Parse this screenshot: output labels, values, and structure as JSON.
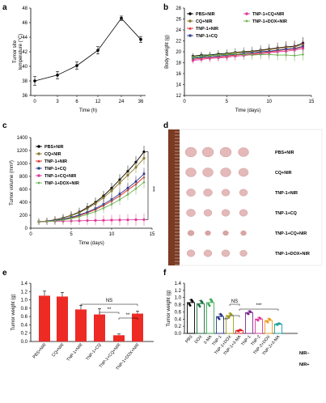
{
  "chart_data": [
    {
      "panel": "a",
      "type": "line",
      "xlabel": "Time (h)",
      "ylabel": "Tumor site temperature (°C)",
      "x": [
        0,
        3,
        6,
        12,
        24,
        36
      ],
      "xticklabels": [
        "0",
        "3",
        "6",
        "12",
        "24",
        "36"
      ],
      "y": [
        38.0,
        38.8,
        40.1,
        42.2,
        46.6,
        43.7
      ],
      "err": [
        0.6,
        0.5,
        0.5,
        0.5,
        0.3,
        0.4
      ],
      "ylim": [
        36,
        48
      ],
      "yticks": [
        36,
        38,
        40,
        42,
        44,
        46,
        48
      ],
      "color": "#000000"
    },
    {
      "panel": "b",
      "type": "line",
      "xlabel": "Time (days)",
      "ylabel": "Body weight (g)",
      "xlim": [
        0,
        15
      ],
      "xticks": [
        0,
        5,
        10,
        15
      ],
      "ylim": [
        12,
        28
      ],
      "yticks": [
        12,
        14,
        16,
        18,
        20,
        22,
        24,
        26,
        28
      ],
      "x": [
        1,
        2,
        3,
        4,
        5,
        6,
        7,
        8,
        9,
        10,
        11,
        12,
        13,
        14
      ],
      "series": [
        {
          "name": "PBS+NIR",
          "color": "#000000",
          "marker": "circle",
          "values": [
            19.2,
            19.4,
            19.4,
            19.6,
            19.7,
            19.9,
            20.0,
            20.1,
            20.3,
            20.5,
            20.7,
            20.9,
            21.0,
            21.6
          ]
        },
        {
          "name": "CQ+NIR",
          "color": "#8c7a2a",
          "marker": "circle",
          "values": [
            19.0,
            19.1,
            19.3,
            19.4,
            19.6,
            19.8,
            19.9,
            20.0,
            20.2,
            20.4,
            20.6,
            20.8,
            20.9,
            21.3
          ]
        },
        {
          "name": "TNP-1+NIR",
          "color": "#e02020",
          "marker": "triangle",
          "values": [
            18.6,
            18.8,
            18.9,
            19.0,
            19.2,
            19.4,
            19.5,
            19.6,
            19.8,
            20.0,
            20.2,
            20.4,
            20.5,
            20.9
          ]
        },
        {
          "name": "TNP-1+CQ",
          "color": "#2a3a8c",
          "marker": "square",
          "values": [
            18.8,
            19.0,
            19.1,
            19.2,
            19.4,
            19.5,
            19.7,
            19.8,
            20.0,
            20.1,
            20.3,
            20.5,
            20.6,
            21.0
          ]
        },
        {
          "name": "TNP-1+CQ+NIR",
          "color": "#e03a9a",
          "marker": "circle",
          "values": [
            18.4,
            18.6,
            18.8,
            18.9,
            19.0,
            19.2,
            19.3,
            19.5,
            19.6,
            19.8,
            20.0,
            20.1,
            20.3,
            20.6
          ]
        },
        {
          "name": "TNP-1+DOX+NIR",
          "color": "#6ab04c",
          "marker": "diamond",
          "values": [
            19.0,
            19.2,
            19.3,
            19.4,
            19.5,
            19.6,
            19.5,
            19.4,
            19.5,
            19.5,
            19.4,
            19.4,
            19.3,
            19.5
          ]
        }
      ]
    },
    {
      "panel": "c",
      "type": "line",
      "xlabel": "Time (days)",
      "ylabel": "Tumor volume (mm³)",
      "xlim": [
        0,
        15
      ],
      "xticks": [
        0,
        5,
        10,
        15
      ],
      "ylim": [
        0,
        1400
      ],
      "yticks": [
        0,
        200,
        400,
        600,
        800,
        1000,
        1200,
        1400
      ],
      "annotation": "***",
      "x": [
        1,
        2,
        3,
        4,
        5,
        6,
        7,
        8,
        9,
        10,
        11,
        12,
        13,
        14
      ],
      "series": [
        {
          "name": "PBS+NIR",
          "color": "#000000",
          "marker": "circle",
          "values": [
            100,
            110,
            130,
            160,
            200,
            250,
            320,
            400,
            500,
            620,
            750,
            880,
            1020,
            1180
          ]
        },
        {
          "name": "CQ+NIR",
          "color": "#8c7a2a",
          "marker": "circle",
          "values": [
            100,
            110,
            128,
            155,
            195,
            240,
            305,
            380,
            470,
            580,
            700,
            820,
            940,
            1080
          ]
        },
        {
          "name": "TNP-1+NIR",
          "color": "#e02020",
          "marker": "triangle",
          "values": [
            100,
            105,
            115,
            135,
            160,
            195,
            240,
            290,
            350,
            420,
            500,
            590,
            680,
            790
          ]
        },
        {
          "name": "TNP-1+CQ",
          "color": "#2a3a8c",
          "marker": "square",
          "values": [
            100,
            108,
            120,
            140,
            168,
            205,
            250,
            305,
            370,
            445,
            530,
            620,
            720,
            840
          ]
        },
        {
          "name": "TNP-1+CQ+NIR",
          "color": "#e03a9a",
          "marker": "circle",
          "values": [
            100,
            105,
            108,
            110,
            112,
            115,
            118,
            120,
            122,
            125,
            127,
            129,
            131,
            133
          ]
        },
        {
          "name": "TNP-1+DOX+NIR",
          "color": "#6ab04c",
          "marker": "diamond",
          "values": [
            100,
            104,
            112,
            128,
            150,
            178,
            215,
            258,
            310,
            370,
            440,
            520,
            610,
            710
          ]
        }
      ]
    },
    {
      "panel": "e",
      "type": "bar",
      "ylabel": "Tumor weight (g)",
      "ylim": [
        0.0,
        1.4
      ],
      "yticks": [
        "0.0",
        "0.2",
        "0.4",
        "0.6",
        "0.8",
        "1.0",
        "1.2",
        "1.4"
      ],
      "categories": [
        "PBS+NIR",
        "CQ+NIR",
        "TNP-1+NIR",
        "TNP-1+CQ",
        "TNP-1+CQ+NIR",
        "TNP-1+DOX+NIR"
      ],
      "values": [
        1.1,
        1.08,
        0.77,
        0.65,
        0.15,
        0.67
      ],
      "err": [
        0.11,
        0.1,
        0.1,
        0.14,
        0.03,
        0.06
      ],
      "color": "#ee2a24",
      "annotations": [
        "NS",
        "**",
        "**"
      ]
    },
    {
      "panel": "f",
      "type": "bar",
      "ylabel": "Tumor weight (g)",
      "ylim": [
        0.0,
        1.4
      ],
      "yticks": [
        "0.0",
        "0.2",
        "0.4",
        "0.6",
        "0.8",
        "1.0",
        "1.2",
        "1.4"
      ],
      "categories": [
        "PBS",
        "DOX",
        "3-MA",
        "TNP-1",
        "TNP-1+DOX",
        "TNP-1+3-MA",
        "TNP-1",
        "TNP-2",
        "TNP-2+DOX",
        "TNP-2+3-MA"
      ],
      "values": [
        0.86,
        0.83,
        0.86,
        0.47,
        0.5,
        0.08,
        0.58,
        0.4,
        0.36,
        0.26
      ],
      "err": [
        0.08,
        0.08,
        0.09,
        0.07,
        0.06,
        0.02,
        0.04,
        0.04,
        0.05,
        0.02
      ],
      "colors": [
        "#000000",
        "#1a6e3c",
        "#3aaa55",
        "#2a3a8c",
        "#a7a21c",
        "#e02020",
        "#7b2a8c",
        "#e03a9a",
        "#e8a020",
        "#1aa0a0"
      ],
      "label_colors": [
        "#e02020",
        "#e02020",
        "#e02020",
        "#e02020",
        "#e02020",
        "#e02020",
        "#000000",
        "#000000",
        "#000000",
        "#000000"
      ],
      "annotations": [
        "NS",
        "***",
        "***"
      ],
      "legend": [
        "NIR−",
        "NIR+"
      ]
    }
  ],
  "panel_d": {
    "rows": [
      "PBS+NIR",
      "CQ+NIR",
      "TNP-1+NIR",
      "TNP-1+CQ",
      "TNP-1+CQ+NIR",
      "TNP-1+DOX+NIR"
    ]
  },
  "panel_labels": [
    "a",
    "b",
    "c",
    "d",
    "e",
    "f"
  ]
}
